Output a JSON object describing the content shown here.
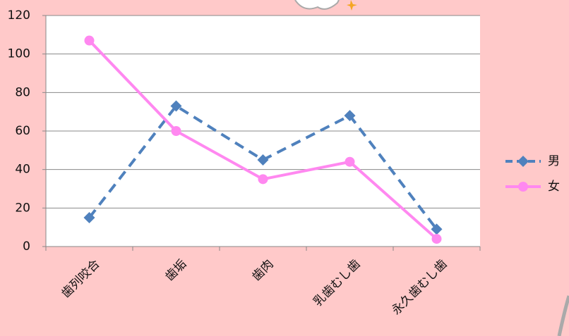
{
  "chart_data": {
    "type": "line",
    "categories": [
      "歯列咬合",
      "歯垢",
      "歯肉",
      "乳歯むし歯",
      "永久歯むし歯"
    ],
    "series": [
      {
        "name": "男",
        "color": "#4f81bd",
        "dash": true,
        "marker": "diamond",
        "values": [
          15,
          73,
          45,
          68,
          9
        ]
      },
      {
        "name": "女",
        "color": "#ff88f0",
        "dash": false,
        "marker": "circle",
        "values": [
          107,
          60,
          35,
          44,
          4
        ]
      }
    ],
    "ylim": [
      0,
      120
    ],
    "yticks": [
      0,
      20,
      40,
      60,
      80,
      100,
      120
    ],
    "grid": true,
    "legend": "right"
  }
}
